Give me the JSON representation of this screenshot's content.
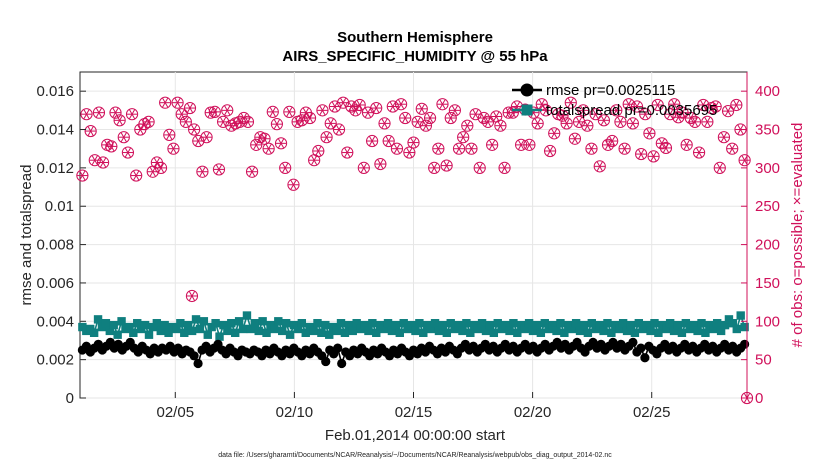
{
  "chart_data": {
    "type": "line",
    "title": "Southern Hemisphere",
    "subtitle": "AIRS_SPECIFIC_HUMIDITY @ 55 hPa",
    "xlabel": "Feb.01,2014 00:00:00 start",
    "ylabel": "rmse and totalspread",
    "ylabel_right": "# of obs: o=possible; ×=evaluated",
    "x_ticks": [
      {
        "value": 5,
        "label": "02/05"
      },
      {
        "value": 10,
        "label": "02/10"
      },
      {
        "value": 15,
        "label": "02/15"
      },
      {
        "value": 20,
        "label": "02/20"
      },
      {
        "value": 25,
        "label": "02/25"
      }
    ],
    "xlim": [
      1.0,
      29.0
    ],
    "ylim": [
      0,
      0.017
    ],
    "y_ticks": [
      "0",
      "0.002",
      "0.004",
      "0.006",
      "0.008",
      "0.01",
      "0.012",
      "0.014",
      "0.016"
    ],
    "y_tick_values": [
      0,
      0.002,
      0.004,
      0.006,
      0.008,
      0.01,
      0.012,
      0.014,
      0.016
    ],
    "ylim_right": [
      0,
      425
    ],
    "y_ticks_right": [
      "0",
      "50",
      "100",
      "150",
      "200",
      "250",
      "300",
      "350",
      "400"
    ],
    "y_tick_values_right": [
      0,
      50,
      100,
      150,
      200,
      250,
      300,
      350,
      400
    ],
    "series": [
      {
        "name": "rmse",
        "legend": "rmse pr=0.0025115",
        "color": "#000000",
        "marker": "circle",
        "values": [
          0.0025,
          0.0027,
          0.0024,
          0.0026,
          0.0028,
          0.0025,
          0.0027,
          0.0029,
          0.0026,
          0.0028,
          0.0025,
          0.0027,
          0.0029,
          0.0026,
          0.0024,
          0.0027,
          0.0025,
          0.0023,
          0.0026,
          0.0024,
          0.0026,
          0.0025,
          0.0027,
          0.0024,
          0.0026,
          0.0023,
          0.0025,
          0.0024,
          0.0022,
          0.0018,
          0.0025,
          0.0027,
          0.0024,
          0.0026,
          0.0028,
          0.0025,
          0.0023,
          0.0026,
          0.0024,
          0.0022,
          0.0025,
          0.0024,
          0.0023,
          0.0025,
          0.0024,
          0.0022,
          0.0025,
          0.0023,
          0.0026,
          0.0024,
          0.0022,
          0.0025,
          0.0023,
          0.0026,
          0.0024,
          0.0022,
          0.0025,
          0.0023,
          0.0026,
          0.0024,
          0.0022,
          0.0019,
          0.0025,
          0.0023,
          0.0026,
          0.0018,
          0.0024,
          0.0022,
          0.0025,
          0.0023,
          0.0026,
          0.0024,
          0.0022,
          0.0025,
          0.0023,
          0.0026,
          0.0024,
          0.0022,
          0.0025,
          0.0023,
          0.0026,
          0.0024,
          0.0022,
          0.0025,
          0.0023,
          0.0026,
          0.0024,
          0.0027,
          0.0025,
          0.0023,
          0.0026,
          0.0024,
          0.0027,
          0.0025,
          0.0023,
          0.0026,
          0.0028,
          0.0025,
          0.0027,
          0.0024,
          0.0026,
          0.0028,
          0.0025,
          0.0027,
          0.0024,
          0.0026,
          0.0028,
          0.0025,
          0.0027,
          0.0024,
          0.0026,
          0.0028,
          0.0025,
          0.0027,
          0.0024,
          0.0026,
          0.0028,
          0.0025,
          0.0027,
          0.0029,
          0.0026,
          0.0028,
          0.0025,
          0.0027,
          0.0029,
          0.0026,
          0.0024,
          0.0027,
          0.0029,
          0.0026,
          0.0028,
          0.0025,
          0.0027,
          0.0029,
          0.0026,
          0.0028,
          0.0025,
          0.0027,
          0.0029,
          0.0024,
          0.0026,
          0.0021,
          0.0027,
          0.0025,
          0.0023,
          0.0026,
          0.0028,
          0.0025,
          0.0027,
          0.0024,
          0.0026,
          0.0028,
          0.0025,
          0.0027,
          0.0024,
          0.0026,
          0.0028,
          0.0025,
          0.0027,
          0.0024,
          0.0026,
          0.0028,
          0.0025,
          0.0027,
          0.0024,
          0.0026,
          0.0028
        ]
      },
      {
        "name": "totalspread",
        "legend": "totalspread pr=0.0035695",
        "color": "#0f7f7f",
        "marker": "square",
        "values": [
          0.0037,
          0.0035,
          0.0036,
          0.0034,
          0.0041,
          0.0037,
          0.0039,
          0.0035,
          0.0038,
          0.0033,
          0.004,
          0.0036,
          0.0037,
          0.0034,
          0.0039,
          0.0036,
          0.0038,
          0.0033,
          0.0037,
          0.0039,
          0.0035,
          0.0038,
          0.0034,
          0.0037,
          0.0036,
          0.0039,
          0.0034,
          0.0038,
          0.0035,
          0.0041,
          0.0036,
          0.004,
          0.0033,
          0.0037,
          0.0039,
          0.0032,
          0.0038,
          0.0035,
          0.0039,
          0.0034,
          0.004,
          0.0036,
          0.0043,
          0.0036,
          0.0039,
          0.0035,
          0.004,
          0.0034,
          0.0038,
          0.0036,
          0.004,
          0.0035,
          0.0039,
          0.0033,
          0.0038,
          0.0036,
          0.0039,
          0.0034,
          0.0037,
          0.0035,
          0.0039,
          0.0034,
          0.0038,
          0.0033,
          0.0037,
          0.0035,
          0.0039,
          0.0034,
          0.0038,
          0.0035,
          0.0039,
          0.0036,
          0.0038,
          0.0035,
          0.0039,
          0.0034,
          0.0038,
          0.0036,
          0.0039,
          0.0035,
          0.0038,
          0.0034,
          0.0039,
          0.0036,
          0.0038,
          0.0035,
          0.0039,
          0.0034,
          0.0038,
          0.0036,
          0.0039,
          0.0035,
          0.0038,
          0.0034,
          0.0039,
          0.0036,
          0.0038,
          0.0035,
          0.0039,
          0.0034,
          0.0038,
          0.0036,
          0.0039,
          0.0035,
          0.0038,
          0.0034,
          0.0039,
          0.0036,
          0.0038,
          0.0035,
          0.0039,
          0.0034,
          0.0038,
          0.0036,
          0.0039,
          0.0035,
          0.0038,
          0.0034,
          0.0039,
          0.0036,
          0.0038,
          0.0035,
          0.0039,
          0.0034,
          0.0038,
          0.0036,
          0.0039,
          0.0035,
          0.0038,
          0.0034,
          0.0039,
          0.0036,
          0.0038,
          0.0035,
          0.0039,
          0.0034,
          0.0038,
          0.0036,
          0.0039,
          0.0035,
          0.0038,
          0.0034,
          0.0039,
          0.0036,
          0.0038,
          0.0035,
          0.0039,
          0.0034,
          0.0038,
          0.0036,
          0.0039,
          0.0035,
          0.0038,
          0.0034,
          0.0039,
          0.0036,
          0.0038,
          0.0035,
          0.0039,
          0.0034,
          0.0038,
          0.0036,
          0.0039,
          0.0035,
          0.0038,
          0.0041,
          0.0039,
          0.0036,
          0.0043,
          0.0037
        ]
      },
      {
        "name": "obs_possible",
        "color": "#d0105a",
        "marker": "open-circle",
        "axis": "right",
        "values": [
          290,
          370,
          348,
          310,
          372,
          307,
          330,
          328,
          372,
          362,
          340,
          320,
          370,
          290,
          350,
          357,
          360,
          295,
          307,
          300,
          385,
          343,
          325,
          385,
          370,
          360,
          378,
          350,
          335,
          295,
          340,
          372,
          373,
          298,
          360,
          375,
          355,
          358,
          360,
          365,
          360,
          295,
          330,
          340,
          338,
          325,
          373,
          357,
          332,
          300,
          373,
          278,
          360,
          362,
          372,
          365,
          310,
          322,
          375,
          340,
          358,
          380,
          350,
          385,
          320,
          380,
          375,
          382,
          300,
          372,
          335,
          378,
          305,
          358,
          335,
          380,
          325,
          383,
          365,
          320,
          333,
          360,
          377,
          355,
          365,
          300,
          325,
          383,
          303,
          365,
          375,
          325,
          340,
          355,
          325,
          370,
          300,
          365,
          360,
          330,
          367,
          355,
          300,
          372,
          372,
          380,
          330,
          376,
          330,
          372,
          358,
          383,
          375,
          322,
          345,
          370,
          368,
          358,
          385,
          338,
          360,
          375,
          355,
          325,
          370,
          302,
          362,
          330,
          335,
          375,
          360,
          325,
          383,
          358,
          380,
          318,
          370,
          345,
          315,
          382,
          332,
          326,
          370,
          383,
          366,
          372,
          330,
          365,
          360,
          320,
          382,
          360,
          378,
          380,
          300,
          340,
          374,
          325,
          382,
          350,
          310
        ]
      },
      {
        "name": "obs_evaluated",
        "color": "#d0105a",
        "marker": "asterisk",
        "axis": "right",
        "values": [
          290,
          370,
          348,
          310,
          372,
          307,
          330,
          328,
          372,
          362,
          340,
          320,
          370,
          290,
          350,
          357,
          360,
          295,
          307,
          300,
          385,
          343,
          325,
          385,
          370,
          360,
          378,
          350,
          335,
          295,
          340,
          372,
          373,
          298,
          360,
          375,
          355,
          358,
          360,
          365,
          360,
          295,
          330,
          340,
          338,
          325,
          373,
          357,
          332,
          300,
          373,
          278,
          360,
          362,
          372,
          365,
          310,
          322,
          375,
          340,
          358,
          380,
          350,
          385,
          320,
          380,
          375,
          382,
          300,
          372,
          335,
          378,
          305,
          358,
          335,
          380,
          325,
          383,
          365,
          320,
          333,
          360,
          377,
          355,
          365,
          300,
          325,
          383,
          303,
          365,
          375,
          325,
          340,
          355,
          325,
          370,
          300,
          365,
          360,
          330,
          367,
          355,
          300,
          372,
          372,
          380,
          330,
          376,
          330,
          372,
          358,
          383,
          375,
          322,
          345,
          370,
          368,
          358,
          385,
          338,
          360,
          375,
          355,
          325,
          370,
          302,
          362,
          330,
          335,
          375,
          360,
          325,
          383,
          358,
          380,
          318,
          370,
          345,
          315,
          382,
          332,
          326,
          370,
          383,
          366,
          372,
          330,
          365,
          360,
          320,
          382,
          360,
          378,
          380,
          300,
          340,
          374,
          325,
          382,
          350,
          310
        ]
      }
    ],
    "outliers_right": [
      {
        "x": 5.7,
        "value": 133
      },
      {
        "x": 29.0,
        "value": 0
      }
    ],
    "legend_position": "top-right",
    "grid": true
  },
  "footer": "data file: /Users/gharamti/Documents/NCAR/Reanalysis/~/Documents/NCAR/Reanalysis/webpub/obs_diag_output_2014-02.nc"
}
